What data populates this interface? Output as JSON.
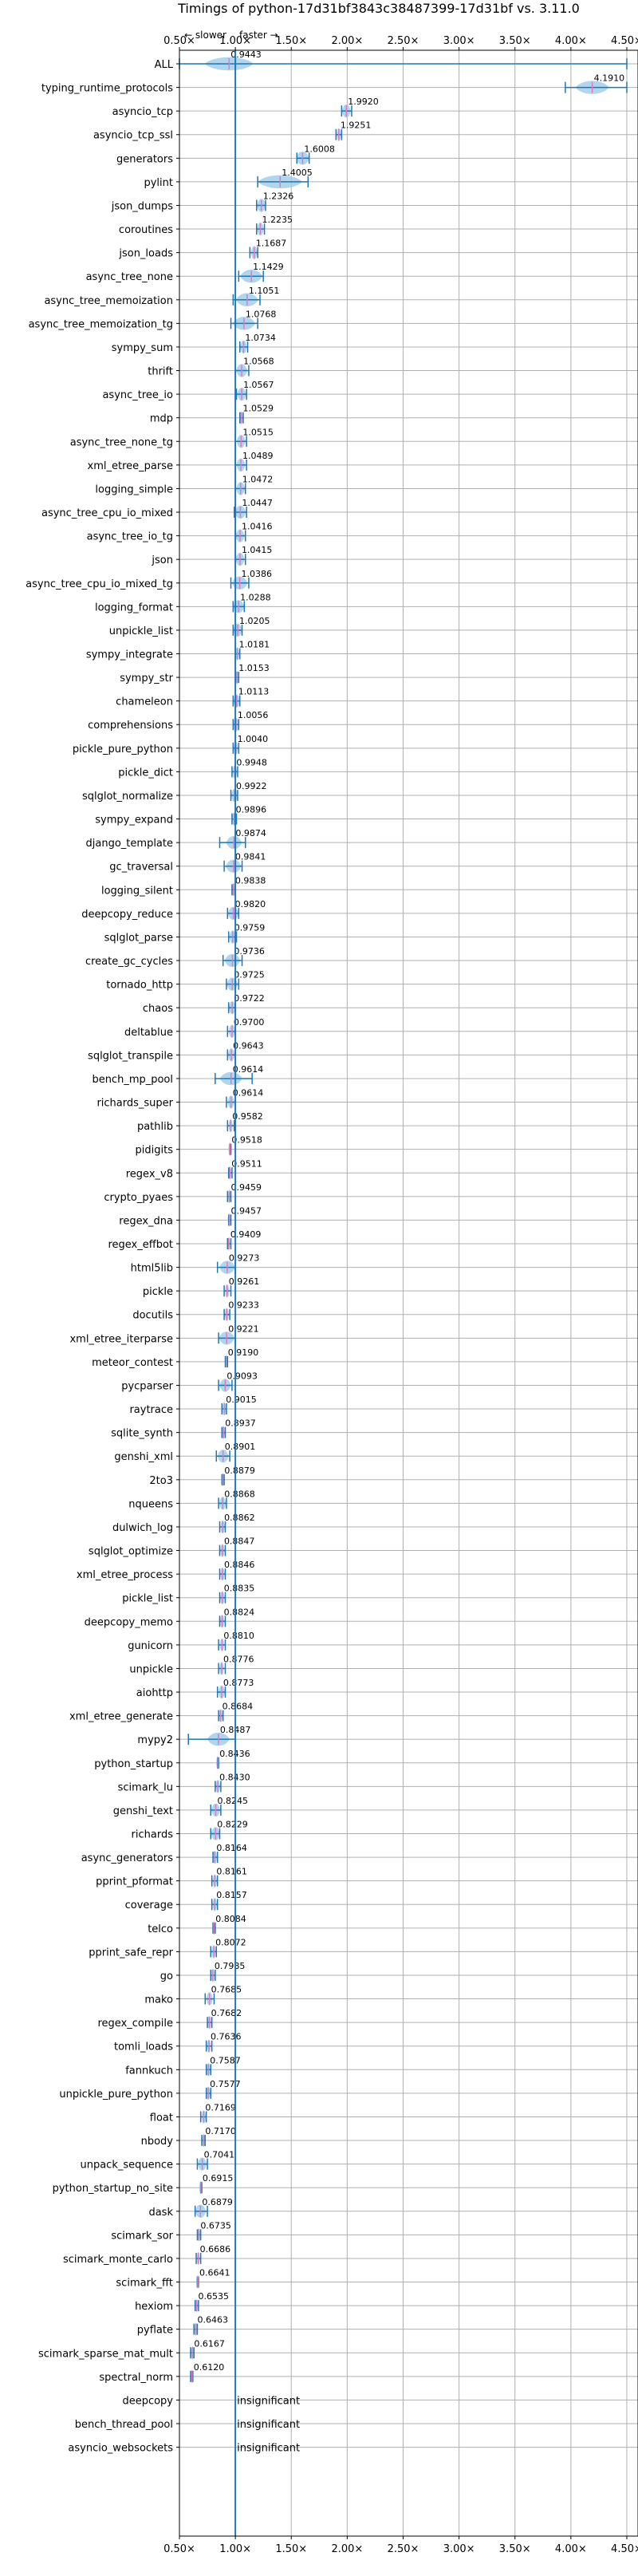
{
  "chart_data": {
    "type": "violin",
    "title": "Timings of python-17d31bf3843c38487399-17d31bf vs. 3.11.0",
    "direction_left": "← slower",
    "direction_right": "faster →",
    "xlim": [
      0.5,
      4.6
    ],
    "xticks": [
      0.5,
      1.0,
      1.5,
      2.0,
      2.5,
      3.0,
      3.5,
      4.0,
      4.5
    ],
    "xtick_labels": [
      "0.50×",
      "1.00×",
      "1.50×",
      "2.00×",
      "2.50×",
      "3.00×",
      "3.50×",
      "4.00×",
      "4.50×"
    ],
    "reference_line": 1.0,
    "grid": true,
    "insignificant_label": "insignificant",
    "benchmarks": [
      {
        "name": "ALL",
        "value": 0.9443,
        "low": 0.5,
        "high": 4.5,
        "spread": 0.22,
        "label": "0.9443"
      },
      {
        "name": "typing_runtime_protocols",
        "value": 4.191,
        "low": 3.95,
        "high": 4.5,
        "spread": 0.15,
        "label": "4.1910"
      },
      {
        "name": "asyncio_tcp",
        "value": 1.992,
        "low": 1.95,
        "high": 2.04,
        "spread": 0.04,
        "label": "1.9920"
      },
      {
        "name": "asyncio_tcp_ssl",
        "value": 1.9251,
        "low": 1.9,
        "high": 1.95,
        "spread": 0.02,
        "label": "1.9251"
      },
      {
        "name": "generators",
        "value": 1.6008,
        "low": 1.55,
        "high": 1.66,
        "spread": 0.06,
        "label": "1.6008"
      },
      {
        "name": "pylint",
        "value": 1.4005,
        "low": 1.2,
        "high": 1.65,
        "spread": 0.2,
        "label": "1.4005"
      },
      {
        "name": "json_dumps",
        "value": 1.2326,
        "low": 1.19,
        "high": 1.27,
        "spread": 0.04,
        "label": "1.2326"
      },
      {
        "name": "coroutines",
        "value": 1.2235,
        "low": 1.19,
        "high": 1.26,
        "spread": 0.03,
        "label": "1.2235"
      },
      {
        "name": "json_loads",
        "value": 1.1687,
        "low": 1.13,
        "high": 1.2,
        "spread": 0.03,
        "label": "1.1687"
      },
      {
        "name": "async_tree_none",
        "value": 1.1429,
        "low": 1.03,
        "high": 1.25,
        "spread": 0.1,
        "label": "1.1429"
      },
      {
        "name": "async_tree_memoization",
        "value": 1.1051,
        "low": 0.98,
        "high": 1.22,
        "spread": 0.1,
        "label": "1.1051"
      },
      {
        "name": "async_tree_memoization_tg",
        "value": 1.0768,
        "low": 0.96,
        "high": 1.2,
        "spread": 0.1,
        "label": "1.0768"
      },
      {
        "name": "sympy_sum",
        "value": 1.0734,
        "low": 1.04,
        "high": 1.11,
        "spread": 0.03,
        "label": "1.0734"
      },
      {
        "name": "thrift",
        "value": 1.0568,
        "low": 1.0,
        "high": 1.12,
        "spread": 0.05,
        "label": "1.0568"
      },
      {
        "name": "async_tree_io",
        "value": 1.0567,
        "low": 1.01,
        "high": 1.1,
        "spread": 0.04,
        "label": "1.0567"
      },
      {
        "name": "mdp",
        "value": 1.0529,
        "low": 1.04,
        "high": 1.07,
        "spread": 0.01,
        "label": "1.0529"
      },
      {
        "name": "async_tree_none_tg",
        "value": 1.0515,
        "low": 1.0,
        "high": 1.1,
        "spread": 0.04,
        "label": "1.0515"
      },
      {
        "name": "xml_etree_parse",
        "value": 1.0489,
        "low": 1.0,
        "high": 1.1,
        "spread": 0.04,
        "label": "1.0489"
      },
      {
        "name": "logging_simple",
        "value": 1.0472,
        "low": 1.0,
        "high": 1.09,
        "spread": 0.04,
        "label": "1.0472"
      },
      {
        "name": "async_tree_cpu_io_mixed",
        "value": 1.0447,
        "low": 0.99,
        "high": 1.1,
        "spread": 0.05,
        "label": "1.0447"
      },
      {
        "name": "async_tree_io_tg",
        "value": 1.0416,
        "low": 1.0,
        "high": 1.09,
        "spread": 0.04,
        "label": "1.0416"
      },
      {
        "name": "json",
        "value": 1.0415,
        "low": 1.0,
        "high": 1.09,
        "spread": 0.04,
        "label": "1.0415"
      },
      {
        "name": "async_tree_cpu_io_mixed_tg",
        "value": 1.0386,
        "low": 0.96,
        "high": 1.12,
        "spread": 0.07,
        "label": "1.0386"
      },
      {
        "name": "logging_format",
        "value": 1.0288,
        "low": 0.98,
        "high": 1.08,
        "spread": 0.05,
        "label": "1.0288"
      },
      {
        "name": "unpickle_list",
        "value": 1.0205,
        "low": 0.98,
        "high": 1.06,
        "spread": 0.04,
        "label": "1.0205"
      },
      {
        "name": "sympy_integrate",
        "value": 1.0181,
        "low": 1.0,
        "high": 1.04,
        "spread": 0.02,
        "label": "1.0181"
      },
      {
        "name": "sympy_str",
        "value": 1.0153,
        "low": 1.0,
        "high": 1.03,
        "spread": 0.02,
        "label": "1.0153"
      },
      {
        "name": "chameleon",
        "value": 1.0113,
        "low": 0.98,
        "high": 1.04,
        "spread": 0.03,
        "label": "1.0113"
      },
      {
        "name": "comprehensions",
        "value": 1.0056,
        "low": 0.98,
        "high": 1.03,
        "spread": 0.03,
        "label": "1.0056"
      },
      {
        "name": "pickle_pure_python",
        "value": 1.004,
        "low": 0.98,
        "high": 1.03,
        "spread": 0.02,
        "label": "1.0040"
      },
      {
        "name": "pickle_dict",
        "value": 0.9948,
        "low": 0.97,
        "high": 1.02,
        "spread": 0.02,
        "label": "0.9948"
      },
      {
        "name": "sqlglot_normalize",
        "value": 0.9922,
        "low": 0.96,
        "high": 1.02,
        "spread": 0.03,
        "label": "0.9922"
      },
      {
        "name": "sympy_expand",
        "value": 0.9896,
        "low": 0.97,
        "high": 1.01,
        "spread": 0.02,
        "label": "0.9896"
      },
      {
        "name": "django_template",
        "value": 0.9874,
        "low": 0.86,
        "high": 1.09,
        "spread": 0.07,
        "label": "0.9874"
      },
      {
        "name": "gc_traversal",
        "value": 0.9841,
        "low": 0.9,
        "high": 1.06,
        "spread": 0.07,
        "label": "0.9841"
      },
      {
        "name": "logging_silent",
        "value": 0.9838,
        "low": 0.97,
        "high": 1.0,
        "spread": 0.02,
        "label": "0.9838"
      },
      {
        "name": "deepcopy_reduce",
        "value": 0.982,
        "low": 0.93,
        "high": 1.03,
        "spread": 0.05,
        "label": "0.9820"
      },
      {
        "name": "sqlglot_parse",
        "value": 0.9759,
        "low": 0.94,
        "high": 1.01,
        "spread": 0.03,
        "label": "0.9759"
      },
      {
        "name": "create_gc_cycles",
        "value": 0.9736,
        "low": 0.89,
        "high": 1.06,
        "spread": 0.07,
        "label": "0.9736"
      },
      {
        "name": "tornado_http",
        "value": 0.9725,
        "low": 0.92,
        "high": 1.03,
        "spread": 0.05,
        "label": "0.9725"
      },
      {
        "name": "chaos",
        "value": 0.9722,
        "low": 0.94,
        "high": 1.0,
        "spread": 0.03,
        "label": "0.9722"
      },
      {
        "name": "deltablue",
        "value": 0.97,
        "low": 0.93,
        "high": 1.0,
        "spread": 0.03,
        "label": "0.9700"
      },
      {
        "name": "sqlglot_transpile",
        "value": 0.9643,
        "low": 0.93,
        "high": 1.0,
        "spread": 0.03,
        "label": "0.9643"
      },
      {
        "name": "bench_mp_pool",
        "value": 0.9614,
        "low": 0.82,
        "high": 1.15,
        "spread": 0.1,
        "label": "0.9614"
      },
      {
        "name": "richards_super",
        "value": 0.9614,
        "low": 0.92,
        "high": 1.0,
        "spread": 0.03,
        "label": "0.9614"
      },
      {
        "name": "pathlib",
        "value": 0.9582,
        "low": 0.93,
        "high": 0.99,
        "spread": 0.02,
        "label": "0.9582"
      },
      {
        "name": "pidigits",
        "value": 0.9518,
        "low": 0.95,
        "high": 0.96,
        "spread": 0.01,
        "label": "0.9518"
      },
      {
        "name": "regex_v8",
        "value": 0.9511,
        "low": 0.94,
        "high": 0.97,
        "spread": 0.01,
        "label": "0.9511"
      },
      {
        "name": "crypto_pyaes",
        "value": 0.9459,
        "low": 0.93,
        "high": 0.96,
        "spread": 0.01,
        "label": "0.9459"
      },
      {
        "name": "regex_dna",
        "value": 0.9457,
        "low": 0.94,
        "high": 0.96,
        "spread": 0.01,
        "label": "0.9457"
      },
      {
        "name": "regex_effbot",
        "value": 0.9409,
        "low": 0.93,
        "high": 0.96,
        "spread": 0.01,
        "label": "0.9409"
      },
      {
        "name": "html5lib",
        "value": 0.9273,
        "low": 0.84,
        "high": 1.0,
        "spread": 0.07,
        "label": "0.9273"
      },
      {
        "name": "pickle",
        "value": 0.9261,
        "low": 0.9,
        "high": 0.96,
        "spread": 0.02,
        "label": "0.9261"
      },
      {
        "name": "docutils",
        "value": 0.9233,
        "low": 0.9,
        "high": 0.95,
        "spread": 0.02,
        "label": "0.9233"
      },
      {
        "name": "xml_etree_iterparse",
        "value": 0.9221,
        "low": 0.85,
        "high": 1.0,
        "spread": 0.07,
        "label": "0.9221"
      },
      {
        "name": "meteor_contest",
        "value": 0.919,
        "low": 0.91,
        "high": 0.93,
        "spread": 0.01,
        "label": "0.9190"
      },
      {
        "name": "pycparser",
        "value": 0.9093,
        "low": 0.85,
        "high": 0.97,
        "spread": 0.05,
        "label": "0.9093"
      },
      {
        "name": "raytrace",
        "value": 0.9015,
        "low": 0.88,
        "high": 0.92,
        "spread": 0.02,
        "label": "0.9015"
      },
      {
        "name": "sqlite_synth",
        "value": 0.8937,
        "low": 0.88,
        "high": 0.91,
        "spread": 0.01,
        "label": "0.8937"
      },
      {
        "name": "genshi_xml",
        "value": 0.8901,
        "low": 0.83,
        "high": 0.95,
        "spread": 0.05,
        "label": "0.8901"
      },
      {
        "name": "2to3",
        "value": 0.8879,
        "low": 0.88,
        "high": 0.9,
        "spread": 0.01,
        "label": "0.8879"
      },
      {
        "name": "nqueens",
        "value": 0.8868,
        "low": 0.85,
        "high": 0.92,
        "spread": 0.03,
        "label": "0.8868"
      },
      {
        "name": "dulwich_log",
        "value": 0.8862,
        "low": 0.86,
        "high": 0.91,
        "spread": 0.02,
        "label": "0.8862"
      },
      {
        "name": "sqlglot_optimize",
        "value": 0.8847,
        "low": 0.86,
        "high": 0.91,
        "spread": 0.02,
        "label": "0.8847"
      },
      {
        "name": "xml_etree_process",
        "value": 0.8846,
        "low": 0.86,
        "high": 0.91,
        "spread": 0.02,
        "label": "0.8846"
      },
      {
        "name": "pickle_list",
        "value": 0.8835,
        "low": 0.86,
        "high": 0.91,
        "spread": 0.02,
        "label": "0.8835"
      },
      {
        "name": "deepcopy_memo",
        "value": 0.8824,
        "low": 0.86,
        "high": 0.91,
        "spread": 0.02,
        "label": "0.8824"
      },
      {
        "name": "gunicorn",
        "value": 0.881,
        "low": 0.85,
        "high": 0.91,
        "spread": 0.02,
        "label": "0.8810"
      },
      {
        "name": "unpickle",
        "value": 0.8776,
        "low": 0.85,
        "high": 0.91,
        "spread": 0.02,
        "label": "0.8776"
      },
      {
        "name": "aiohttp",
        "value": 0.8773,
        "low": 0.84,
        "high": 0.91,
        "spread": 0.03,
        "label": "0.8773"
      },
      {
        "name": "xml_etree_generate",
        "value": 0.8684,
        "low": 0.85,
        "high": 0.89,
        "spread": 0.02,
        "label": "0.8684"
      },
      {
        "name": "mypy2",
        "value": 0.8487,
        "low": 0.58,
        "high": 1.0,
        "spread": 0.1,
        "label": "0.8487"
      },
      {
        "name": "python_startup",
        "value": 0.8436,
        "low": 0.84,
        "high": 0.85,
        "spread": 0.01,
        "label": "0.8436"
      },
      {
        "name": "scimark_lu",
        "value": 0.843,
        "low": 0.82,
        "high": 0.87,
        "spread": 0.02,
        "label": "0.8430"
      },
      {
        "name": "genshi_text",
        "value": 0.8245,
        "low": 0.78,
        "high": 0.87,
        "spread": 0.04,
        "label": "0.8245"
      },
      {
        "name": "richards",
        "value": 0.8229,
        "low": 0.78,
        "high": 0.86,
        "spread": 0.04,
        "label": "0.8229"
      },
      {
        "name": "async_generators",
        "value": 0.8164,
        "low": 0.8,
        "high": 0.84,
        "spread": 0.02,
        "label": "0.8164"
      },
      {
        "name": "pprint_pformat",
        "value": 0.8161,
        "low": 0.79,
        "high": 0.84,
        "spread": 0.02,
        "label": "0.8161"
      },
      {
        "name": "coverage",
        "value": 0.8157,
        "low": 0.79,
        "high": 0.84,
        "spread": 0.02,
        "label": "0.8157"
      },
      {
        "name": "telco",
        "value": 0.8084,
        "low": 0.8,
        "high": 0.82,
        "spread": 0.01,
        "label": "0.8084"
      },
      {
        "name": "pprint_safe_repr",
        "value": 0.8072,
        "low": 0.78,
        "high": 0.83,
        "spread": 0.02,
        "label": "0.8072"
      },
      {
        "name": "go",
        "value": 0.7985,
        "low": 0.78,
        "high": 0.82,
        "spread": 0.02,
        "label": "0.7985"
      },
      {
        "name": "mako",
        "value": 0.7685,
        "low": 0.73,
        "high": 0.81,
        "spread": 0.03,
        "label": "0.7685"
      },
      {
        "name": "regex_compile",
        "value": 0.7682,
        "low": 0.75,
        "high": 0.79,
        "spread": 0.02,
        "label": "0.7682"
      },
      {
        "name": "tomli_loads",
        "value": 0.7636,
        "low": 0.74,
        "high": 0.79,
        "spread": 0.02,
        "label": "0.7636"
      },
      {
        "name": "fannkuch",
        "value": 0.7587,
        "low": 0.74,
        "high": 0.78,
        "spread": 0.02,
        "label": "0.7587"
      },
      {
        "name": "unpickle_pure_python",
        "value": 0.7577,
        "low": 0.74,
        "high": 0.78,
        "spread": 0.02,
        "label": "0.7577"
      },
      {
        "name": "float",
        "value": 0.7169,
        "low": 0.69,
        "high": 0.74,
        "spread": 0.02,
        "label": "0.7169"
      },
      {
        "name": "nbody",
        "value": 0.717,
        "low": 0.7,
        "high": 0.73,
        "spread": 0.01,
        "label": "0.7170"
      },
      {
        "name": "unpack_sequence",
        "value": 0.7041,
        "low": 0.66,
        "high": 0.75,
        "spread": 0.04,
        "label": "0.7041"
      },
      {
        "name": "python_startup_no_site",
        "value": 0.6915,
        "low": 0.69,
        "high": 0.7,
        "spread": 0.01,
        "label": "0.6915"
      },
      {
        "name": "dask",
        "value": 0.6879,
        "low": 0.64,
        "high": 0.75,
        "spread": 0.05,
        "label": "0.6879"
      },
      {
        "name": "scimark_sor",
        "value": 0.6735,
        "low": 0.66,
        "high": 0.69,
        "spread": 0.01,
        "label": "0.6735"
      },
      {
        "name": "scimark_monte_carlo",
        "value": 0.6686,
        "low": 0.65,
        "high": 0.69,
        "spread": 0.01,
        "label": "0.6686"
      },
      {
        "name": "scimark_fft",
        "value": 0.6641,
        "low": 0.66,
        "high": 0.67,
        "spread": 0.01,
        "label": "0.6641"
      },
      {
        "name": "hexiom",
        "value": 0.6535,
        "low": 0.64,
        "high": 0.67,
        "spread": 0.01,
        "label": "0.6535"
      },
      {
        "name": "pyflate",
        "value": 0.6463,
        "low": 0.63,
        "high": 0.66,
        "spread": 0.01,
        "label": "0.6463"
      },
      {
        "name": "scimark_sparse_mat_mult",
        "value": 0.6167,
        "low": 0.6,
        "high": 0.63,
        "spread": 0.01,
        "label": "0.6167"
      },
      {
        "name": "spectral_norm",
        "value": 0.612,
        "low": 0.6,
        "high": 0.62,
        "spread": 0.01,
        "label": "0.6120"
      },
      {
        "name": "deepcopy",
        "value": null,
        "insignificant": true
      },
      {
        "name": "bench_thread_pool",
        "value": null,
        "insignificant": true
      },
      {
        "name": "asyncio_websockets",
        "value": null,
        "insignificant": true
      }
    ],
    "colors": {
      "violin": "#9ecae9",
      "line": "#1f77b4",
      "mean": "#e377c2",
      "grid": "#b0b0b0",
      "text": "#000000"
    }
  }
}
